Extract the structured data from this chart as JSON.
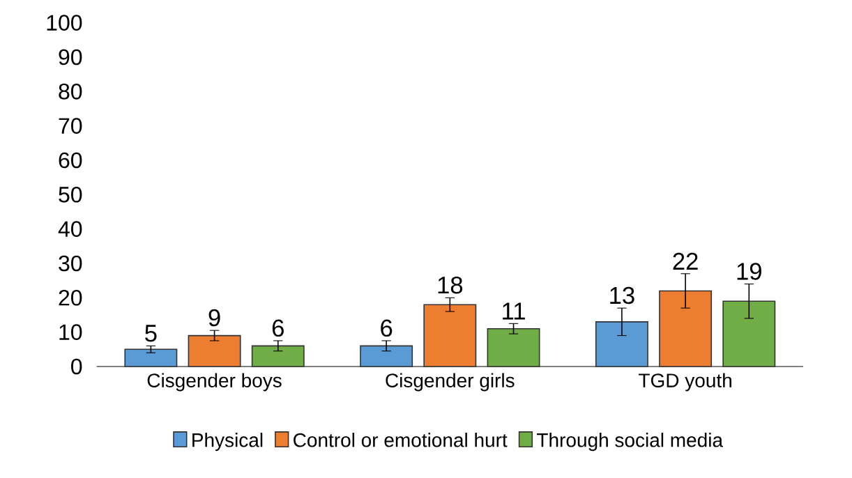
{
  "chart_data": {
    "type": "bar",
    "categories": [
      "Cisgender boys",
      "Cisgender girls",
      "TGD youth"
    ],
    "series": [
      {
        "name": "Physical",
        "color": "#5b9bd5",
        "values": [
          5,
          6,
          13
        ],
        "errors": [
          1,
          1.5,
          4
        ]
      },
      {
        "name": "Control or emotional hurt",
        "color": "#ed7d31",
        "values": [
          9,
          18,
          22
        ],
        "errors": [
          1.5,
          2,
          5
        ]
      },
      {
        "name": "Through social media",
        "color": "#70ad47",
        "values": [
          6,
          11,
          19
        ],
        "errors": [
          1.5,
          1.5,
          5
        ]
      }
    ],
    "ylim": [
      0,
      100
    ],
    "yticks": [
      0,
      10,
      20,
      30,
      40,
      50,
      60,
      70,
      80,
      90,
      100
    ],
    "data_labels": true,
    "legend": "bottom"
  }
}
